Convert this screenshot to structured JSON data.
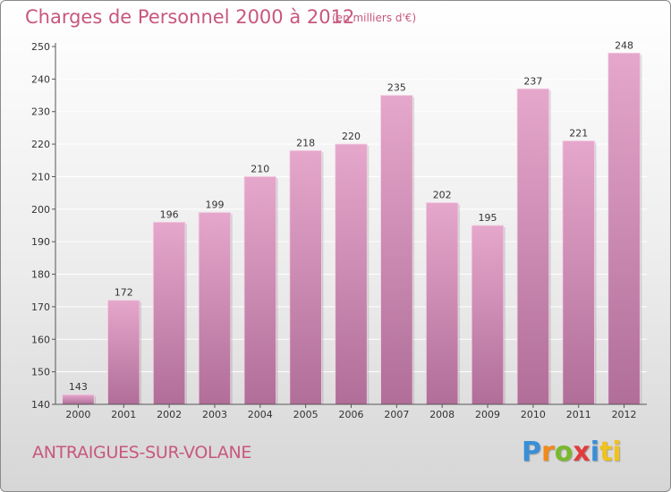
{
  "colors": {
    "title": "#c8577e",
    "bar_light": "#e6a7cc",
    "bar_dark": "#b06e98",
    "logo": [
      "#3a8fd6",
      "#f08a1c",
      "#7ab82e",
      "#e23b3b",
      "#3a8fd6",
      "#f0c21c"
    ]
  },
  "header": {
    "title": "Charges de Personnel 2000 à 2012",
    "unit": "(en milliers d'€)"
  },
  "footer": {
    "commune": "ANTRAIGUES-SUR-VOLANE",
    "logo": [
      "P",
      "r",
      "o",
      "x",
      "i",
      "ti"
    ]
  },
  "chart_data": {
    "type": "bar",
    "categories": [
      "2000",
      "2001",
      "2002",
      "2003",
      "2004",
      "2005",
      "2006",
      "2007",
      "2008",
      "2009",
      "2010",
      "2011",
      "2012"
    ],
    "values": [
      143,
      172,
      196,
      199,
      210,
      218,
      220,
      235,
      202,
      195,
      237,
      221,
      248
    ],
    "data_labels": [
      "143",
      "172",
      "196",
      "199",
      "210",
      "218",
      "220",
      "235",
      "202",
      "195",
      "237",
      "221",
      "248"
    ],
    "ylim": [
      140,
      250
    ],
    "yticks": [
      "140",
      "150",
      "160",
      "170",
      "180",
      "190",
      "200",
      "210",
      "220",
      "230",
      "240",
      "250"
    ],
    "grid": true,
    "legend": false
  }
}
